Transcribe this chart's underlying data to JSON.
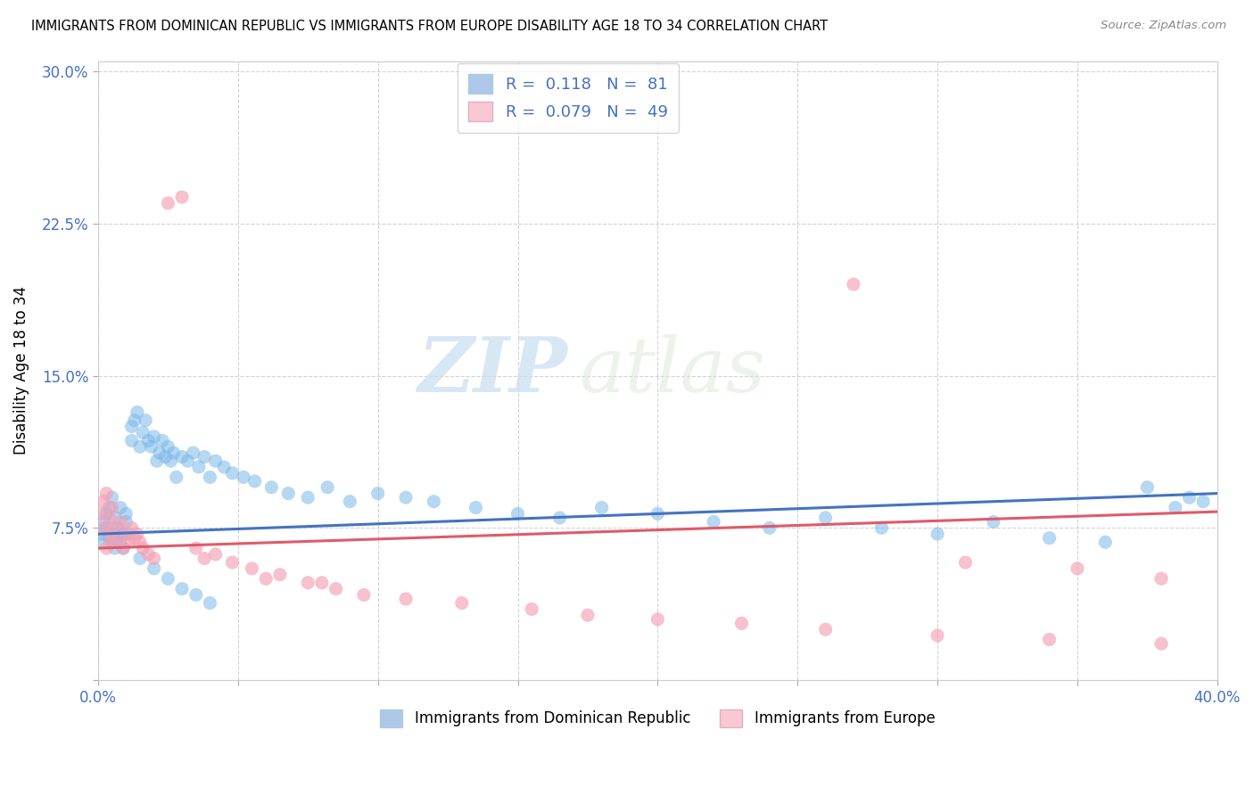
{
  "title": "IMMIGRANTS FROM DOMINICAN REPUBLIC VS IMMIGRANTS FROM EUROPE DISABILITY AGE 18 TO 34 CORRELATION CHART",
  "source": "Source: ZipAtlas.com",
  "ylabel_label": "Disability Age 18 to 34",
  "xmin": 0.0,
  "xmax": 0.4,
  "ymin": 0.0,
  "ymax": 0.3,
  "series1": {
    "label": "Immigrants from Dominican Republic",
    "color": "#7ab8e8",
    "R": 0.118,
    "N": 81,
    "x": [
      0.001,
      0.002,
      0.002,
      0.003,
      0.003,
      0.004,
      0.004,
      0.005,
      0.005,
      0.006,
      0.006,
      0.006,
      0.007,
      0.007,
      0.008,
      0.008,
      0.009,
      0.009,
      0.01,
      0.01,
      0.011,
      0.012,
      0.012,
      0.013,
      0.014,
      0.015,
      0.016,
      0.017,
      0.018,
      0.019,
      0.02,
      0.021,
      0.022,
      0.023,
      0.024,
      0.025,
      0.026,
      0.027,
      0.028,
      0.03,
      0.032,
      0.034,
      0.036,
      0.038,
      0.04,
      0.042,
      0.045,
      0.048,
      0.052,
      0.056,
      0.062,
      0.068,
      0.075,
      0.082,
      0.09,
      0.1,
      0.11,
      0.12,
      0.135,
      0.15,
      0.165,
      0.18,
      0.2,
      0.22,
      0.24,
      0.26,
      0.28,
      0.3,
      0.32,
      0.34,
      0.36,
      0.375,
      0.385,
      0.39,
      0.395,
      0.015,
      0.02,
      0.025,
      0.03,
      0.035,
      0.04
    ],
    "y": [
      0.072,
      0.068,
      0.078,
      0.075,
      0.082,
      0.07,
      0.085,
      0.068,
      0.09,
      0.072,
      0.065,
      0.08,
      0.07,
      0.075,
      0.068,
      0.085,
      0.072,
      0.065,
      0.078,
      0.082,
      0.072,
      0.125,
      0.118,
      0.128,
      0.132,
      0.115,
      0.122,
      0.128,
      0.118,
      0.115,
      0.12,
      0.108,
      0.112,
      0.118,
      0.11,
      0.115,
      0.108,
      0.112,
      0.1,
      0.11,
      0.108,
      0.112,
      0.105,
      0.11,
      0.1,
      0.108,
      0.105,
      0.102,
      0.1,
      0.098,
      0.095,
      0.092,
      0.09,
      0.095,
      0.088,
      0.092,
      0.09,
      0.088,
      0.085,
      0.082,
      0.08,
      0.085,
      0.082,
      0.078,
      0.075,
      0.08,
      0.075,
      0.072,
      0.078,
      0.07,
      0.068,
      0.095,
      0.085,
      0.09,
      0.088,
      0.06,
      0.055,
      0.05,
      0.045,
      0.042,
      0.038
    ]
  },
  "series2": {
    "label": "Immigrants from Europe",
    "color": "#f4a0b5",
    "R": 0.079,
    "N": 49,
    "x": [
      0.001,
      0.002,
      0.002,
      0.003,
      0.003,
      0.004,
      0.004,
      0.005,
      0.005,
      0.006,
      0.007,
      0.008,
      0.009,
      0.01,
      0.011,
      0.012,
      0.013,
      0.014,
      0.015,
      0.016,
      0.018,
      0.02,
      0.025,
      0.03,
      0.035,
      0.038,
      0.042,
      0.048,
      0.055,
      0.065,
      0.075,
      0.085,
      0.095,
      0.11,
      0.13,
      0.155,
      0.175,
      0.2,
      0.23,
      0.26,
      0.3,
      0.34,
      0.38,
      0.27,
      0.31,
      0.35,
      0.38,
      0.06,
      0.08
    ],
    "y": [
      0.082,
      0.075,
      0.088,
      0.065,
      0.092,
      0.072,
      0.08,
      0.068,
      0.085,
      0.075,
      0.07,
      0.078,
      0.065,
      0.072,
      0.068,
      0.075,
      0.07,
      0.072,
      0.068,
      0.065,
      0.062,
      0.06,
      0.235,
      0.238,
      0.065,
      0.06,
      0.062,
      0.058,
      0.055,
      0.052,
      0.048,
      0.045,
      0.042,
      0.04,
      0.038,
      0.035,
      0.032,
      0.03,
      0.028,
      0.025,
      0.022,
      0.02,
      0.018,
      0.195,
      0.058,
      0.055,
      0.05,
      0.05,
      0.048
    ]
  },
  "line1_color": "#4472c4",
  "line2_color": "#e05a6a",
  "bg_color": "#ffffff",
  "grid_color": "#c8c8c8",
  "legend_box_color1": "#aec9e8",
  "legend_box_color2": "#f9c8d4"
}
